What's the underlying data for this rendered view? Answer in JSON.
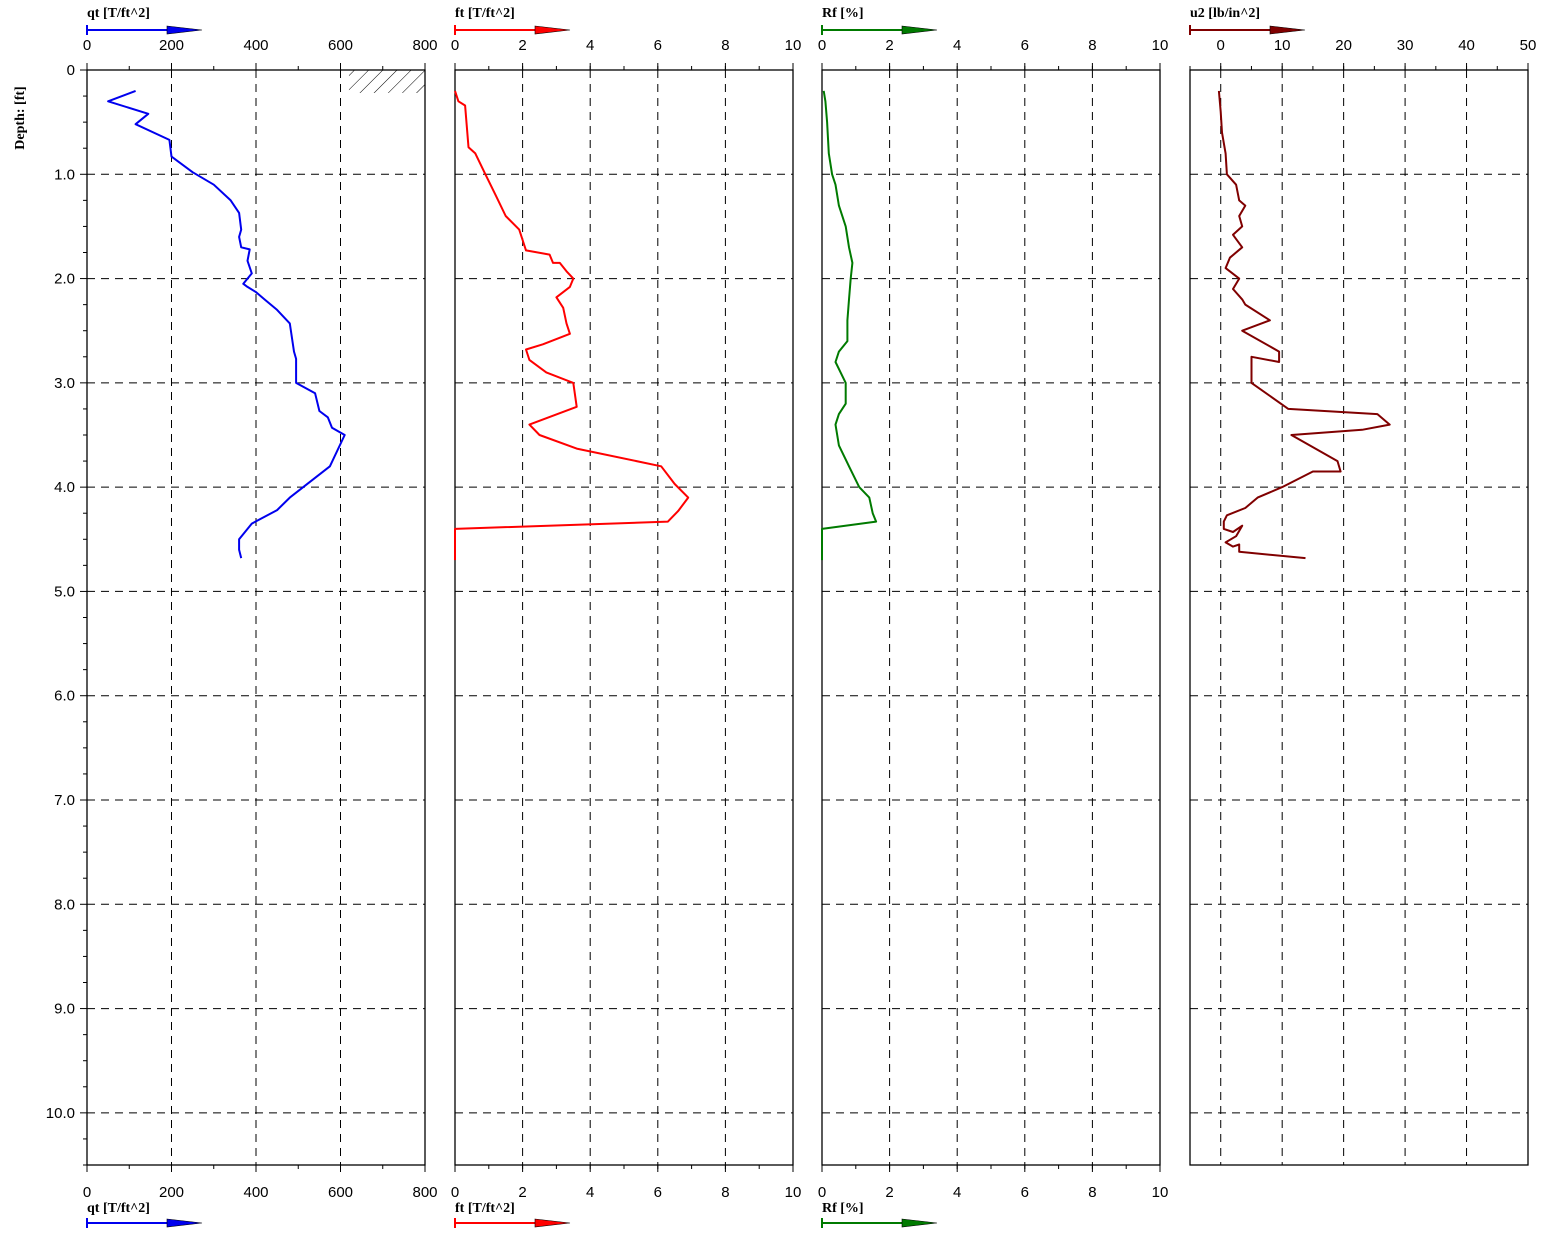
{
  "chart_data": {
    "type": "line",
    "depth_axis": {
      "label": "Depth: [ft]",
      "range": [
        0,
        10.5
      ],
      "tick_labels": [
        "0",
        "1.0",
        "2.0",
        "3.0",
        "4.0",
        "5.0",
        "6.0",
        "7.0",
        "8.0",
        "9.0",
        "10.0"
      ],
      "tick_values": [
        0,
        1,
        2,
        3,
        4,
        5,
        6,
        7,
        8,
        9,
        10
      ],
      "inverted": true
    },
    "grid": true,
    "panels": [
      {
        "id": "qt",
        "label": "qt [T/ft^2]",
        "color": "#0000ee",
        "xlim": [
          0,
          800
        ],
        "ticks": [
          0,
          200,
          400,
          600,
          800
        ],
        "tick_labels": [
          "0",
          "200",
          "400",
          "600",
          "800"
        ],
        "bottom_axis": true,
        "annotation": "hatched-block-near-top-right",
        "points": [
          [
            115,
            0.2
          ],
          [
            50,
            0.3
          ],
          [
            145,
            0.42
          ],
          [
            115,
            0.52
          ],
          [
            195,
            0.67
          ],
          [
            200,
            0.83
          ],
          [
            250,
            0.98
          ],
          [
            300,
            1.1
          ],
          [
            340,
            1.25
          ],
          [
            360,
            1.37
          ],
          [
            365,
            1.53
          ],
          [
            360,
            1.6
          ],
          [
            365,
            1.7
          ],
          [
            385,
            1.72
          ],
          [
            380,
            1.83
          ],
          [
            390,
            1.95
          ],
          [
            370,
            2.05
          ],
          [
            380,
            2.08
          ],
          [
            400,
            2.13
          ],
          [
            420,
            2.2
          ],
          [
            450,
            2.3
          ],
          [
            480,
            2.43
          ],
          [
            490,
            2.7
          ],
          [
            495,
            2.77
          ],
          [
            495,
            3.0
          ],
          [
            540,
            3.1
          ],
          [
            550,
            3.27
          ],
          [
            570,
            3.33
          ],
          [
            580,
            3.43
          ],
          [
            610,
            3.5
          ],
          [
            575,
            3.8
          ],
          [
            480,
            4.1
          ],
          [
            450,
            4.22
          ],
          [
            390,
            4.35
          ],
          [
            360,
            4.5
          ],
          [
            360,
            4.6
          ],
          [
            365,
            4.68
          ]
        ]
      },
      {
        "id": "ft",
        "label": "ft [T/ft^2]",
        "color": "#ff0000",
        "xlim": [
          0,
          10
        ],
        "ticks": [
          0,
          2,
          4,
          6,
          8,
          10
        ],
        "tick_labels": [
          "0",
          "2",
          "4",
          "6",
          "8",
          "10"
        ],
        "bottom_axis": true,
        "points": [
          [
            0.0,
            0.2
          ],
          [
            0.1,
            0.3
          ],
          [
            0.3,
            0.34
          ],
          [
            0.4,
            0.74
          ],
          [
            0.6,
            0.8
          ],
          [
            0.9,
            1.0
          ],
          [
            1.2,
            1.2
          ],
          [
            1.5,
            1.4
          ],
          [
            1.9,
            1.53
          ],
          [
            2.0,
            1.63
          ],
          [
            2.1,
            1.73
          ],
          [
            2.8,
            1.77
          ],
          [
            2.9,
            1.85
          ],
          [
            3.1,
            1.85
          ],
          [
            3.3,
            1.93
          ],
          [
            3.5,
            2.0
          ],
          [
            3.4,
            2.08
          ],
          [
            3.0,
            2.18
          ],
          [
            3.2,
            2.28
          ],
          [
            3.3,
            2.43
          ],
          [
            3.4,
            2.53
          ],
          [
            2.6,
            2.63
          ],
          [
            2.1,
            2.68
          ],
          [
            2.2,
            2.78
          ],
          [
            2.7,
            2.9
          ],
          [
            3.5,
            3.0
          ],
          [
            3.6,
            3.23
          ],
          [
            2.2,
            3.4
          ],
          [
            2.5,
            3.5
          ],
          [
            3.6,
            3.63
          ],
          [
            6.1,
            3.8
          ],
          [
            6.5,
            3.97
          ],
          [
            6.9,
            4.1
          ],
          [
            6.6,
            4.23
          ],
          [
            6.3,
            4.33
          ],
          [
            0.0,
            4.4
          ],
          [
            0.0,
            4.7
          ]
        ]
      },
      {
        "id": "rf",
        "label": "Rf [%]",
        "color": "#007a00",
        "xlim": [
          0,
          10
        ],
        "ticks": [
          0,
          2,
          4,
          6,
          8,
          10
        ],
        "tick_labels": [
          "0",
          "2",
          "4",
          "6",
          "8",
          "10"
        ],
        "bottom_axis": true,
        "points": [
          [
            0.05,
            0.2
          ],
          [
            0.1,
            0.3
          ],
          [
            0.15,
            0.5
          ],
          [
            0.2,
            0.8
          ],
          [
            0.3,
            1.0
          ],
          [
            0.4,
            1.1
          ],
          [
            0.5,
            1.3
          ],
          [
            0.7,
            1.5
          ],
          [
            0.8,
            1.7
          ],
          [
            0.9,
            1.85
          ],
          [
            0.85,
            2.0
          ],
          [
            0.8,
            2.2
          ],
          [
            0.75,
            2.4
          ],
          [
            0.75,
            2.6
          ],
          [
            0.5,
            2.7
          ],
          [
            0.4,
            2.8
          ],
          [
            0.55,
            2.9
          ],
          [
            0.7,
            3.0
          ],
          [
            0.7,
            3.2
          ],
          [
            0.5,
            3.3
          ],
          [
            0.4,
            3.4
          ],
          [
            0.5,
            3.6
          ],
          [
            0.8,
            3.8
          ],
          [
            1.1,
            4.0
          ],
          [
            1.4,
            4.1
          ],
          [
            1.5,
            4.25
          ],
          [
            1.6,
            4.33
          ],
          [
            0.0,
            4.4
          ],
          [
            0.0,
            4.7
          ]
        ]
      },
      {
        "id": "u2",
        "label": "u2 [lb/in^2]",
        "color": "#800000",
        "xlim": [
          -5,
          50
        ],
        "ticks": [
          0,
          10,
          20,
          30,
          40,
          50
        ],
        "tick_labels": [
          "0",
          "10",
          "20",
          "30",
          "40",
          "50"
        ],
        "bottom_axis": false,
        "points": [
          [
            -0.3,
            0.2
          ],
          [
            0.0,
            0.4
          ],
          [
            0.2,
            0.6
          ],
          [
            0.8,
            0.8
          ],
          [
            1.0,
            1.0
          ],
          [
            2.5,
            1.1
          ],
          [
            3.0,
            1.25
          ],
          [
            4.0,
            1.3
          ],
          [
            3.0,
            1.4
          ],
          [
            3.5,
            1.5
          ],
          [
            2.0,
            1.58
          ],
          [
            3.5,
            1.7
          ],
          [
            1.5,
            1.8
          ],
          [
            0.8,
            1.9
          ],
          [
            3.0,
            2.0
          ],
          [
            2.0,
            2.1
          ],
          [
            3.5,
            2.2
          ],
          [
            4.0,
            2.25
          ],
          [
            8.0,
            2.4
          ],
          [
            3.5,
            2.5
          ],
          [
            9.5,
            2.7
          ],
          [
            9.5,
            2.8
          ],
          [
            5.0,
            2.75
          ],
          [
            5.0,
            3.0
          ],
          [
            11.0,
            3.25
          ],
          [
            25.5,
            3.3
          ],
          [
            27.5,
            3.4
          ],
          [
            23.0,
            3.45
          ],
          [
            11.5,
            3.5
          ],
          [
            19.0,
            3.75
          ],
          [
            19.5,
            3.85
          ],
          [
            15.0,
            3.85
          ],
          [
            10.0,
            4.0
          ],
          [
            6.0,
            4.1
          ],
          [
            4.0,
            4.2
          ],
          [
            1.0,
            4.27
          ],
          [
            0.5,
            4.33
          ],
          [
            0.5,
            4.4
          ],
          [
            2.0,
            4.43
          ],
          [
            3.5,
            4.37
          ],
          [
            2.5,
            4.47
          ],
          [
            0.8,
            4.53
          ],
          [
            2.0,
            4.57
          ],
          [
            3.0,
            4.55
          ],
          [
            3.0,
            4.62
          ],
          [
            13.8,
            4.68
          ]
        ]
      }
    ]
  }
}
